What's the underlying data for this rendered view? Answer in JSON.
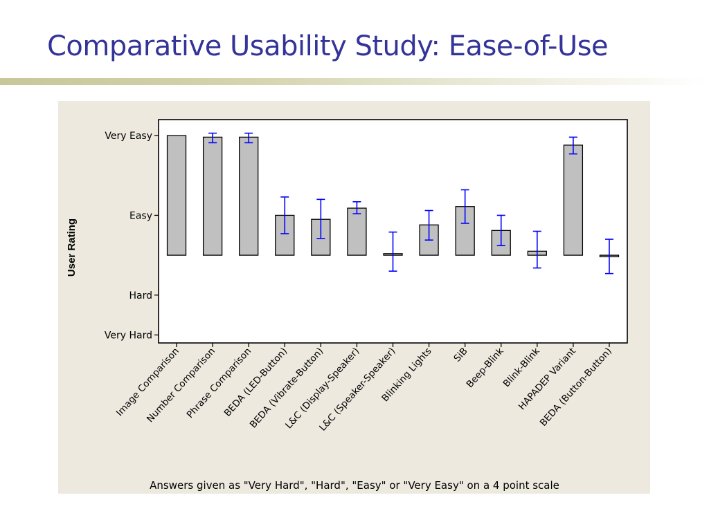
{
  "title": "Comparative Usability Study: Ease-of-Use",
  "colors": {
    "title": "#333399",
    "bar_fill": "#c0c0c0",
    "error_bar": "#0000ff",
    "panel_bg": "#ede9df"
  },
  "chart_data": {
    "type": "bar",
    "ylabel": "User Rating",
    "caption": "Answers given as \"Very Hard\", \"Hard\", \"Easy\" or \"Very Easy\" on a 4 point scale",
    "y_scale": {
      "ticks": [
        1,
        1.5,
        2.5,
        3.5
      ],
      "tick_labels": [
        "Very Hard",
        "Hard",
        "Easy",
        "Very Easy"
      ],
      "ylim": [
        0.9,
        3.7
      ],
      "bar_baseline": 2.0
    },
    "categories": [
      "Image Comparison",
      "Number Comparison",
      "Phrase Comparison",
      "BEDA (LED-Button)",
      "BEDA (Vibrate-Button)",
      "L&C (Display-Speaker)",
      "L&C (Speaker-Speaker)",
      "Blinking Lights",
      "SiB",
      "Beep-Blink",
      "Blink-Blink",
      "HAPADEP Variant",
      "BEDA (Button-Button)"
    ],
    "values": [
      3.5,
      3.48,
      3.48,
      2.5,
      2.45,
      2.59,
      2.02,
      2.38,
      2.61,
      2.31,
      2.05,
      3.38,
      1.98
    ],
    "error_low": [
      3.5,
      3.41,
      3.41,
      2.27,
      2.21,
      2.52,
      1.8,
      2.19,
      2.4,
      2.12,
      1.84,
      3.27,
      1.77
    ],
    "error_high": [
      3.5,
      3.53,
      3.53,
      2.73,
      2.7,
      2.67,
      2.29,
      2.56,
      2.82,
      2.5,
      2.3,
      3.48,
      2.2
    ],
    "grid": false,
    "legend": false
  }
}
